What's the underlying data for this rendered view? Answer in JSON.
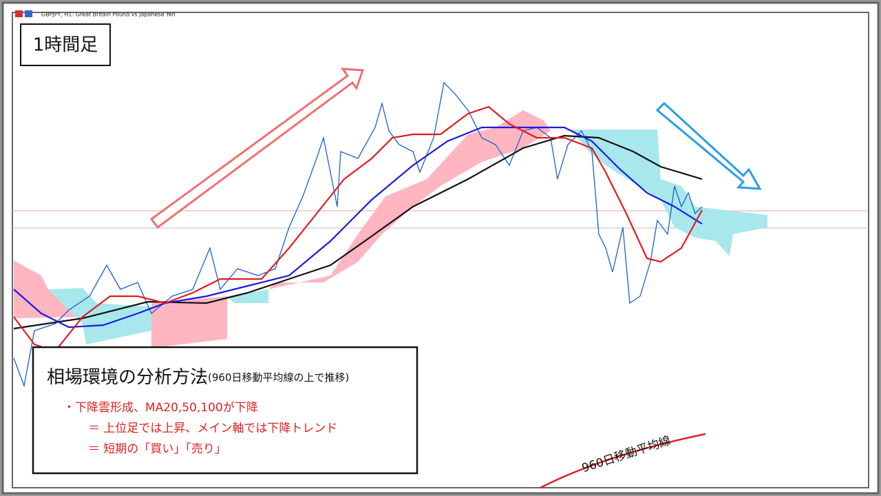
{
  "window": {
    "title": "GBPJPY, H1:  Great Britain Pound vs Japanese Yen"
  },
  "timeframe_label": "1時間足",
  "note": {
    "heading": "相場環境の分析方法",
    "subheading": "(960日移動平均線の上で推移)",
    "lines": [
      "・下降雲形成、MA20,50,100が下降",
      "＝ 上位足では上昇、メイン軸では下降トレンド",
      "＝ 短期の「買い」「売り」"
    ]
  },
  "curve_label": "960日移動平均線"
}
